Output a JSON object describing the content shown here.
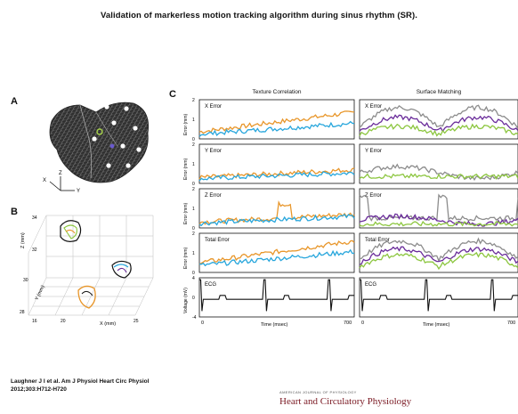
{
  "title": "Validation  of markerless motion tracking algorithm during sinus rhythm (SR).",
  "panels": {
    "a": "A",
    "b": "B",
    "c": "C"
  },
  "panel_c": {
    "columns": [
      "Texture Correlation",
      "Surface Matching"
    ],
    "rows": [
      "X Error",
      "Y Error",
      "Z Error",
      "Total Error",
      "ECG"
    ],
    "ylabel_error": "Error (mm)",
    "ylabel_ecg": "Voltage (mV)",
    "xlabel": "Time (msec)",
    "xticks": [
      "0",
      "700"
    ],
    "yticks_error": [
      "0",
      "1",
      "2"
    ],
    "yticks_ecg": [
      "-4",
      "0",
      "4"
    ]
  },
  "panel_b": {
    "zlabel": "Z (mm)",
    "ylabel": "Y (mm)",
    "xlabel": "X (mm)",
    "ticks": [
      "34",
      "32",
      "30",
      "28",
      "16",
      "20",
      "25"
    ]
  },
  "panel_a_axes": {
    "x": "X",
    "y": "Y",
    "z": "Z"
  },
  "citation": [
    "Laughner J I et al. Am J Physiol Heart Circ Physiol",
    "2012;303:H712-H720"
  ],
  "journal": {
    "top": "AMERICAN JOURNAL OF PHYSIOLOGY",
    "name": "Heart and Circulatory Physiology"
  },
  "colors": {
    "orange": "#e8962a",
    "blue": "#27a6dc",
    "gray": "#8c8c8c",
    "purple": "#6a2c9a",
    "green": "#8cc63f",
    "ecg": "#111111"
  }
}
